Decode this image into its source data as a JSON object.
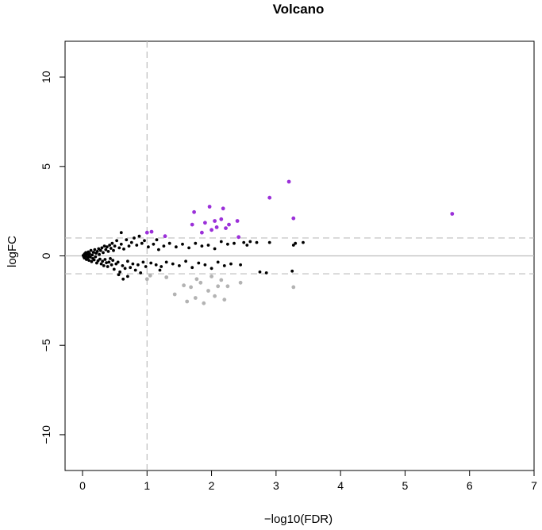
{
  "chart_data": {
    "type": "scatter",
    "title": "Volcano",
    "xlabel": "−log10(FDR)",
    "ylabel": "logFC",
    "xlim": [
      0,
      7
    ],
    "ylim": [
      -12,
      12
    ],
    "x_ticks": [
      0,
      1,
      2,
      3,
      4,
      5,
      6,
      7
    ],
    "y_ticks": [
      -10,
      -5,
      0,
      5,
      10
    ],
    "x_tick_labels": [
      "0",
      "1",
      "2",
      "3",
      "4",
      "5",
      "6",
      "7"
    ],
    "y_tick_labels": [
      "−10",
      "−5",
      "0",
      "5",
      "10"
    ],
    "grid": false,
    "reference_lines": {
      "fdr_threshold_x": 1,
      "logfc_threshold_y": [
        1,
        -1
      ],
      "baseline_y": 0
    },
    "colors": {
      "up": "#9b30d9",
      "down": "#b3b3b3",
      "ns": "#000000"
    },
    "series": [
      {
        "group": "up",
        "color": "#9b30d9",
        "points": [
          [
            1.0,
            1.3
          ],
          [
            1.07,
            1.35
          ],
          [
            1.28,
            1.1
          ],
          [
            1.7,
            1.75
          ],
          [
            1.73,
            2.45
          ],
          [
            1.85,
            1.3
          ],
          [
            1.9,
            1.85
          ],
          [
            1.97,
            2.75
          ],
          [
            2.0,
            1.45
          ],
          [
            2.05,
            1.95
          ],
          [
            2.08,
            1.6
          ],
          [
            2.15,
            2.05
          ],
          [
            2.18,
            2.65
          ],
          [
            2.22,
            1.55
          ],
          [
            2.27,
            1.75
          ],
          [
            2.4,
            1.95
          ],
          [
            2.42,
            1.05
          ],
          [
            2.9,
            3.25
          ],
          [
            3.2,
            4.15
          ],
          [
            3.27,
            2.1
          ],
          [
            5.73,
            2.35
          ]
        ]
      },
      {
        "group": "down",
        "color": "#b3b3b3",
        "points": [
          [
            1.0,
            -1.3
          ],
          [
            1.05,
            -1.1
          ],
          [
            1.3,
            -1.2
          ],
          [
            1.43,
            -2.15
          ],
          [
            1.57,
            -1.65
          ],
          [
            1.62,
            -2.55
          ],
          [
            1.68,
            -1.75
          ],
          [
            1.75,
            -2.35
          ],
          [
            1.77,
            -1.3
          ],
          [
            1.83,
            -1.5
          ],
          [
            1.88,
            -2.65
          ],
          [
            1.95,
            -1.95
          ],
          [
            2.0,
            -1.15
          ],
          [
            2.05,
            -2.25
          ],
          [
            2.1,
            -1.7
          ],
          [
            2.15,
            -1.35
          ],
          [
            2.2,
            -2.45
          ],
          [
            2.25,
            -1.7
          ],
          [
            2.45,
            -1.5
          ],
          [
            3.27,
            -1.75
          ]
        ]
      },
      {
        "group": "ns",
        "color": "#000000",
        "points": [
          [
            0.01,
            0.02
          ],
          [
            0.02,
            -0.05
          ],
          [
            0.03,
            0.1
          ],
          [
            0.03,
            -0.12
          ],
          [
            0.04,
            0.05
          ],
          [
            0.05,
            -0.02
          ],
          [
            0.05,
            0.18
          ],
          [
            0.06,
            -0.2
          ],
          [
            0.07,
            0.08
          ],
          [
            0.08,
            -0.1
          ],
          [
            0.09,
            0.22
          ],
          [
            0.1,
            -0.25
          ],
          [
            0.1,
            0.0
          ],
          [
            0.11,
            0.12
          ],
          [
            0.12,
            -0.06
          ],
          [
            0.13,
            0.3
          ],
          [
            0.14,
            -0.32
          ],
          [
            0.15,
            0.05
          ],
          [
            0.16,
            -0.15
          ],
          [
            0.17,
            0.2
          ],
          [
            0.18,
            -0.22
          ],
          [
            0.19,
            0.35
          ],
          [
            0.2,
            -0.05
          ],
          [
            0.21,
            0.15
          ],
          [
            0.22,
            -0.4
          ],
          [
            0.23,
            0.25
          ],
          [
            0.24,
            -0.28
          ],
          [
            0.25,
            0.4
          ],
          [
            0.26,
            0.08
          ],
          [
            0.27,
            -0.18
          ],
          [
            0.28,
            0.3
          ],
          [
            0.29,
            -0.45
          ],
          [
            0.3,
            0.45
          ],
          [
            0.31,
            -0.3
          ],
          [
            0.32,
            0.18
          ],
          [
            0.33,
            -0.55
          ],
          [
            0.34,
            0.55
          ],
          [
            0.35,
            -0.2
          ],
          [
            0.36,
            0.35
          ],
          [
            0.37,
            -0.38
          ],
          [
            0.38,
            0.5
          ],
          [
            0.39,
            -0.6
          ],
          [
            0.4,
            0.25
          ],
          [
            0.41,
            -0.35
          ],
          [
            0.42,
            0.6
          ],
          [
            0.43,
            -0.15
          ],
          [
            0.44,
            0.42
          ],
          [
            0.45,
            -0.5
          ],
          [
            0.46,
            0.7
          ],
          [
            0.47,
            -0.25
          ],
          [
            0.48,
            0.3
          ],
          [
            0.49,
            -0.75
          ],
          [
            0.5,
            0.55
          ],
          [
            0.52,
            -0.45
          ],
          [
            0.53,
            0.85
          ],
          [
            0.55,
            -0.35
          ],
          [
            0.57,
            0.45
          ],
          [
            0.58,
            -0.9
          ],
          [
            0.6,
            0.65
          ],
          [
            0.62,
            -0.55
          ],
          [
            0.64,
            0.38
          ],
          [
            0.66,
            -0.7
          ],
          [
            0.68,
            0.9
          ],
          [
            0.7,
            -0.3
          ],
          [
            0.72,
            0.55
          ],
          [
            0.74,
            -0.65
          ],
          [
            0.76,
            0.75
          ],
          [
            0.78,
            -0.45
          ],
          [
            0.8,
            1.0
          ],
          [
            0.82,
            -0.8
          ],
          [
            0.84,
            0.6
          ],
          [
            0.86,
            -0.5
          ],
          [
            0.88,
            1.1
          ],
          [
            0.9,
            -0.95
          ],
          [
            0.92,
            0.7
          ],
          [
            0.94,
            -0.35
          ],
          [
            0.96,
            0.85
          ],
          [
            0.98,
            -0.6
          ],
          [
            0.6,
            1.3
          ],
          [
            0.63,
            -1.3
          ],
          [
            0.7,
            -1.15
          ],
          [
            0.56,
            -1.05
          ],
          [
            1.02,
            0.5
          ],
          [
            1.06,
            -0.4
          ],
          [
            1.1,
            0.65
          ],
          [
            1.14,
            -0.5
          ],
          [
            1.18,
            0.35
          ],
          [
            1.22,
            -0.6
          ],
          [
            1.26,
            0.55
          ],
          [
            1.3,
            -0.35
          ],
          [
            1.35,
            0.7
          ],
          [
            1.4,
            -0.45
          ],
          [
            1.45,
            0.5
          ],
          [
            1.5,
            -0.55
          ],
          [
            1.55,
            0.65
          ],
          [
            1.6,
            -0.3
          ],
          [
            1.65,
            0.45
          ],
          [
            1.7,
            -0.65
          ],
          [
            1.75,
            0.7
          ],
          [
            1.8,
            -0.4
          ],
          [
            1.85,
            0.55
          ],
          [
            1.9,
            -0.5
          ],
          [
            1.95,
            0.6
          ],
          [
            2.0,
            -0.7
          ],
          [
            2.05,
            0.4
          ],
          [
            2.1,
            -0.35
          ],
          [
            2.15,
            0.8
          ],
          [
            2.2,
            -0.55
          ],
          [
            2.25,
            0.65
          ],
          [
            2.3,
            -0.45
          ],
          [
            2.35,
            0.7
          ],
          [
            2.45,
            -0.5
          ],
          [
            2.5,
            0.75
          ],
          [
            2.55,
            0.6
          ],
          [
            2.7,
            0.75
          ],
          [
            2.75,
            -0.9
          ],
          [
            2.85,
            -0.95
          ],
          [
            2.9,
            0.75
          ],
          [
            3.25,
            -0.85
          ],
          [
            3.3,
            0.7
          ],
          [
            3.42,
            0.75
          ],
          [
            3.27,
            0.6
          ],
          [
            2.6,
            0.8
          ],
          [
            1.15,
            0.9
          ],
          [
            1.2,
            -0.8
          ]
        ]
      }
    ]
  }
}
